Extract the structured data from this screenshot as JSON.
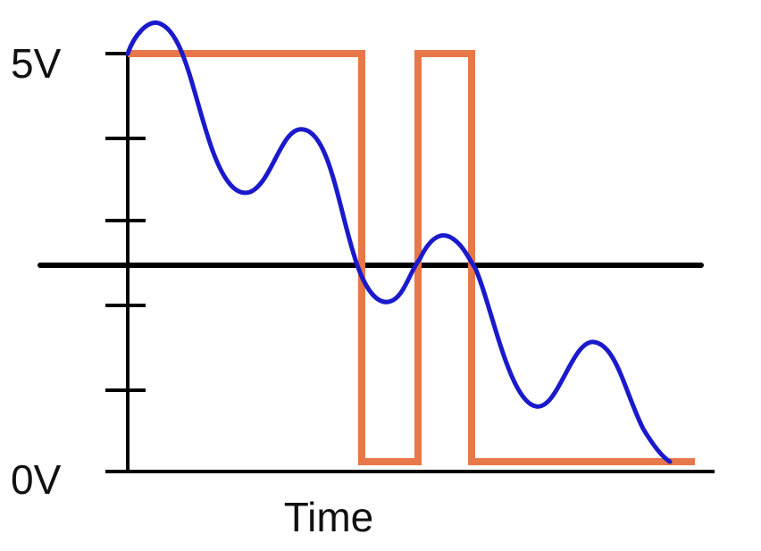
{
  "axis": {
    "y_top_label": "5V",
    "y_bottom_label": "0V",
    "x_label": "Time"
  }
}
